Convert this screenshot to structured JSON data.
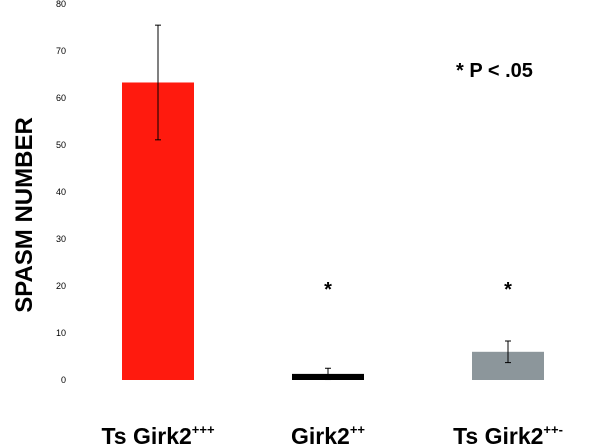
{
  "chart_data": {
    "type": "bar",
    "ylabel": "SPASM NUMBER",
    "ylim": [
      0,
      80
    ],
    "yticks": [
      0,
      10,
      20,
      30,
      40,
      50,
      60,
      70,
      80
    ],
    "grid": false,
    "categories": [
      {
        "base": "Ts Girk2",
        "sup": "+++"
      },
      {
        "base": "Girk2",
        "sup": "++"
      },
      {
        "base": "Ts Girk2",
        "sup": "++-"
      }
    ],
    "values": [
      63.3,
      1.3,
      6.0
    ],
    "errors": [
      12.2,
      1.2,
      2.3
    ],
    "colors": [
      "#ff1a0e",
      "#000000",
      "#8c969b"
    ],
    "significance_markers": [
      "",
      "*",
      "*"
    ],
    "annotation": "* P < .05"
  }
}
